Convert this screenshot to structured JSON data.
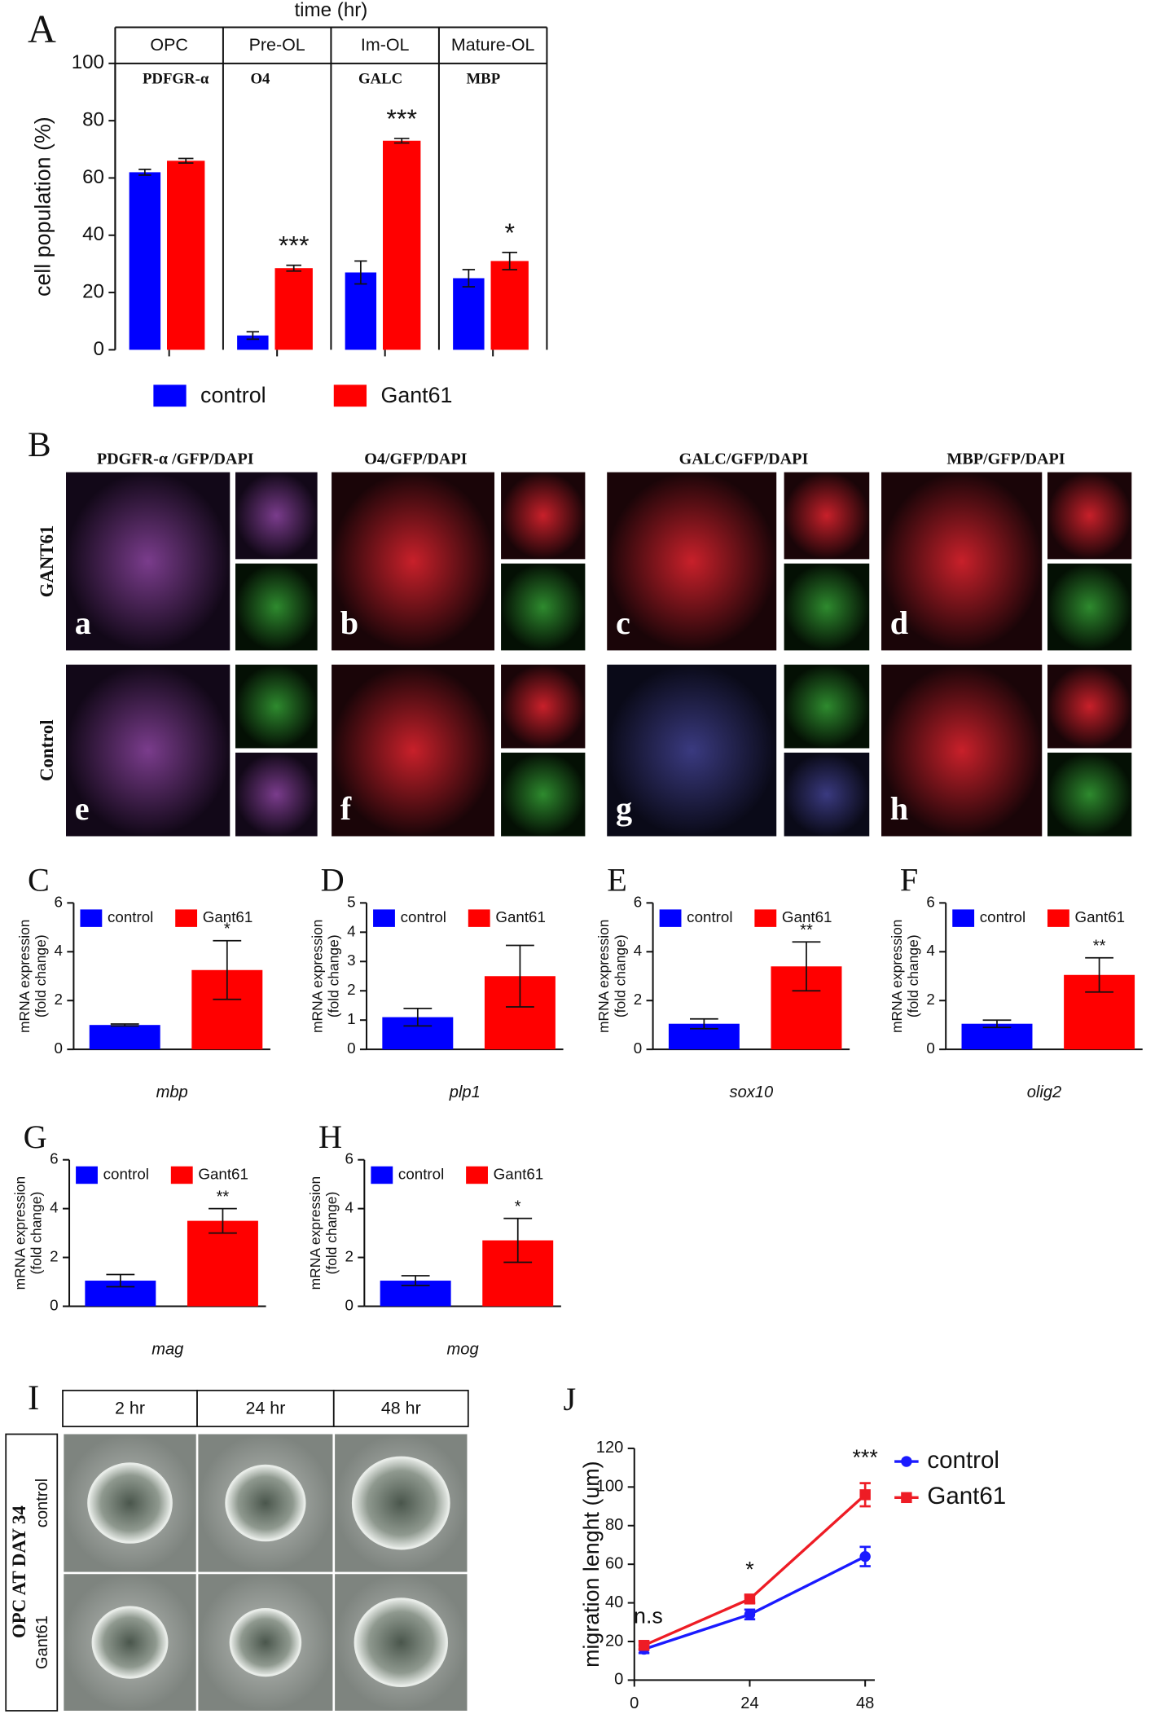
{
  "chart_data": [
    {
      "type": "bar",
      "panel": "A",
      "title": "time (hr)",
      "ylabel": "cell population (%)",
      "categories": [
        "OPC",
        "Pre-OL",
        "Im-OL",
        "Mature-OL"
      ],
      "markers": [
        "PDFGR-α",
        "O4",
        "GALC",
        "MBP"
      ],
      "series": [
        {
          "name": "control",
          "color": "#0000ff",
          "values": [
            62,
            5,
            27,
            25
          ],
          "errors": [
            1,
            1.3,
            4,
            3
          ]
        },
        {
          "name": "Gant61",
          "color": "#ff0000",
          "values": [
            66,
            28.5,
            73,
            31
          ],
          "errors": [
            0.8,
            1,
            0.8,
            3
          ]
        }
      ],
      "significance": [
        null,
        "***",
        "***",
        "*"
      ],
      "ylim": [
        0,
        100
      ],
      "yticks": [
        0,
        20,
        40,
        60,
        80,
        100
      ]
    },
    {
      "type": "bar",
      "panel": "C",
      "ylabel": [
        "mRNA expression",
        "(fold change)"
      ],
      "xlabel": "mbp",
      "series": [
        {
          "name": "control",
          "color": "#0000ff",
          "values": [
            1.0
          ],
          "errors": [
            0.04
          ]
        },
        {
          "name": "Gant61",
          "color": "#ff0000",
          "values": [
            3.25
          ],
          "errors": [
            1.2
          ]
        }
      ],
      "significance": [
        "*"
      ],
      "ylim": [
        0,
        6
      ],
      "yticks": [
        0,
        2,
        4,
        6
      ]
    },
    {
      "type": "bar",
      "panel": "D",
      "ylabel": [
        "mRNA expression",
        "(fold change)"
      ],
      "xlabel": "plp1",
      "series": [
        {
          "name": "control",
          "color": "#0000ff",
          "values": [
            1.1
          ],
          "errors": [
            0.3
          ]
        },
        {
          "name": "Gant61",
          "color": "#ff0000",
          "values": [
            2.5
          ],
          "errors": [
            1.05
          ]
        }
      ],
      "ylim": [
        0,
        5
      ],
      "yticks": [
        0,
        1,
        2,
        3,
        4,
        5
      ]
    },
    {
      "type": "bar",
      "panel": "E",
      "ylabel": [
        "mRNA expression",
        "(fold change)"
      ],
      "xlabel": "sox10",
      "series": [
        {
          "name": "control",
          "color": "#0000ff",
          "values": [
            1.05
          ],
          "errors": [
            0.2
          ]
        },
        {
          "name": "Gant61",
          "color": "#ff0000",
          "values": [
            3.4
          ],
          "errors": [
            1.0
          ]
        }
      ],
      "significance": [
        "**"
      ],
      "ylim": [
        0,
        6
      ],
      "yticks": [
        0,
        2,
        4,
        6
      ]
    },
    {
      "type": "bar",
      "panel": "F",
      "ylabel": [
        "mRNA expression",
        "(fold change)"
      ],
      "xlabel": "olig2",
      "series": [
        {
          "name": "control",
          "color": "#0000ff",
          "values": [
            1.05
          ],
          "errors": [
            0.15
          ]
        },
        {
          "name": "Gant61",
          "color": "#ff0000",
          "values": [
            3.05
          ],
          "errors": [
            0.7
          ]
        }
      ],
      "significance": [
        "**"
      ],
      "ylim": [
        0,
        6
      ],
      "yticks": [
        0,
        2,
        4,
        6
      ]
    },
    {
      "type": "bar",
      "panel": "G",
      "ylabel": [
        "mRNA expression",
        "(fold change)"
      ],
      "xlabel": "mag",
      "series": [
        {
          "name": "control",
          "color": "#0000ff",
          "values": [
            1.05
          ],
          "errors": [
            0.25
          ]
        },
        {
          "name": "Gant61",
          "color": "#ff0000",
          "values": [
            3.5
          ],
          "errors": [
            0.5
          ]
        }
      ],
      "significance": [
        "**"
      ],
      "ylim": [
        0,
        6
      ],
      "yticks": [
        0,
        2,
        4,
        6
      ]
    },
    {
      "type": "bar",
      "panel": "H",
      "ylabel": [
        "mRNA expression",
        "(fold change)"
      ],
      "xlabel": "mog",
      "series": [
        {
          "name": "control",
          "color": "#0000ff",
          "values": [
            1.05
          ],
          "errors": [
            0.2
          ]
        },
        {
          "name": "Gant61",
          "color": "#ff0000",
          "values": [
            2.7
          ],
          "errors": [
            0.9
          ]
        }
      ],
      "significance": [
        "*"
      ],
      "ylim": [
        0,
        6
      ],
      "yticks": [
        0,
        2,
        4,
        6
      ]
    },
    {
      "type": "line",
      "panel": "J",
      "ylabel": "migration lenght (um)",
      "x": [
        2,
        24,
        48
      ],
      "series": [
        {
          "name": "control",
          "color": "#1a1aff",
          "marker": "circle",
          "values": [
            16,
            34,
            64
          ],
          "errors": [
            2,
            2.5,
            5
          ]
        },
        {
          "name": "Gant61",
          "color": "#ee1c25",
          "marker": "square",
          "values": [
            18,
            42,
            96
          ],
          "errors": [
            2,
            2,
            6
          ]
        }
      ],
      "annotations": [
        "n.s",
        "*",
        "***"
      ],
      "xlim": [
        0,
        50
      ],
      "ylim": [
        0,
        120
      ],
      "xticks": [
        0,
        24,
        48
      ],
      "yticks": [
        0,
        20,
        40,
        60,
        80,
        100,
        120
      ]
    }
  ],
  "panel_b": {
    "panel": "B",
    "columns": [
      "PDGFR-α /GFP/DAPI",
      "O4/GFP/DAPI",
      "GALC/GFP/DAPI",
      "MBP/GFP/DAPI"
    ],
    "rows": [
      "GANT61",
      "Control"
    ],
    "letters": [
      [
        "a",
        "b",
        "c",
        "d"
      ],
      [
        "e",
        "f",
        "g",
        "h"
      ]
    ]
  },
  "panel_i": {
    "panel": "I",
    "columns": [
      "2 hr",
      "24 hr",
      "48 hr"
    ],
    "side_label": "OPC AT DAY 34",
    "rows": [
      "control",
      "Gant61"
    ]
  }
}
